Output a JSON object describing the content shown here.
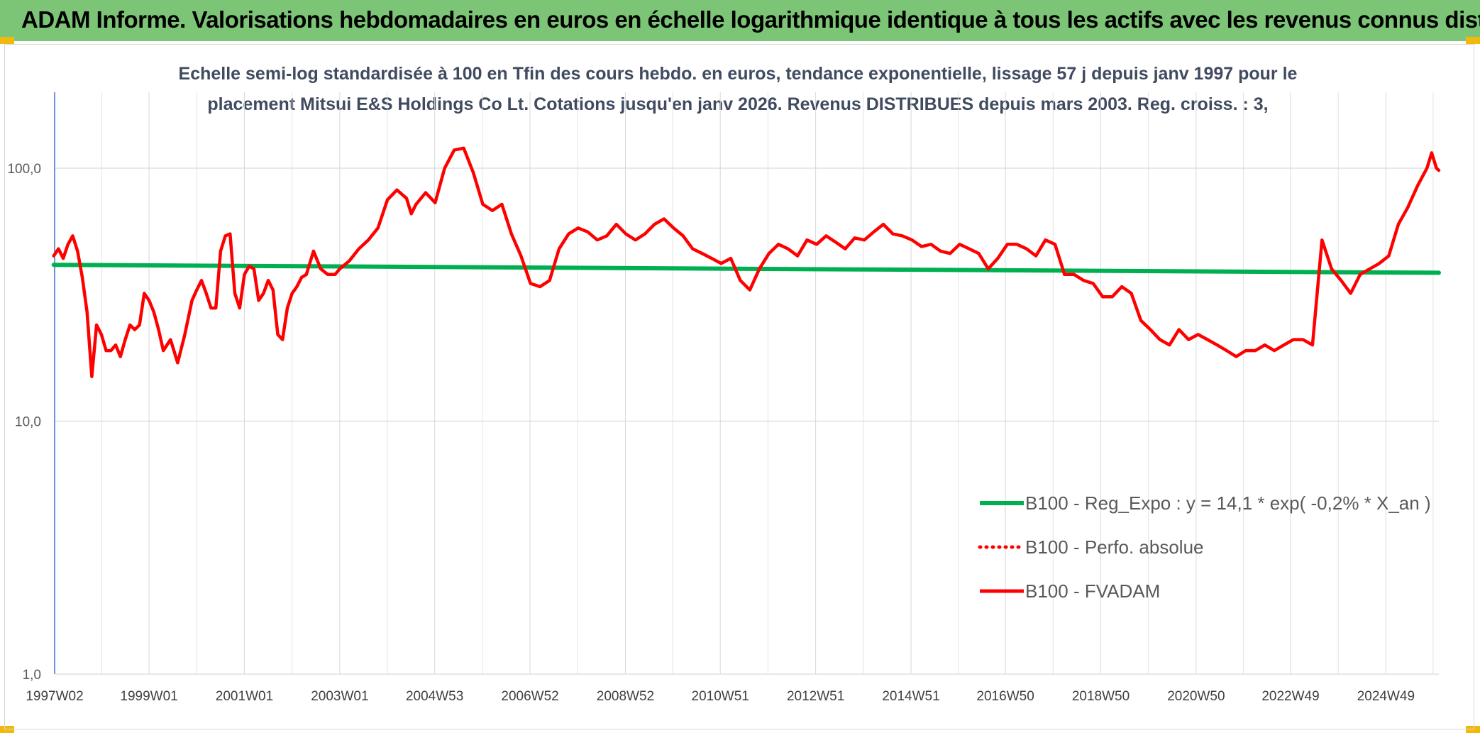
{
  "header": {
    "title": "ADAM Informe. Valorisations hebdomadaires en euros en échelle logarithmique identique à tous les actifs avec les revenus connus distribués"
  },
  "colors": {
    "banner": "#7cc576",
    "corner": "#f2b90d",
    "regression": "#00b050",
    "series": "#ff0000"
  },
  "chart_data": {
    "type": "line",
    "title_line1": "Echelle semi-log standardisée à 100 en Tfin des cours hebdo. en euros, tendance exponentielle, lissage 57 j depuis janv 1997 pour le",
    "title_line2": "placement Mitsui E&S Holdings Co Lt. Cotations jusqu'en janv 2026. Revenus DISTRIBUES depuis mars 2003. Reg. croiss. : 3,",
    "y_scale": "log",
    "ylim": [
      1,
      200
    ],
    "y_ticks": [
      {
        "value": 100,
        "label": "100,0"
      },
      {
        "value": 10,
        "label": "10,0"
      },
      {
        "value": 1,
        "label": "1,0"
      }
    ],
    "x_range": [
      1997.02,
      2026.05
    ],
    "x_ticks": [
      {
        "value": 1997.02,
        "label": "1997W02"
      },
      {
        "value": 1999.0,
        "label": "1999W01"
      },
      {
        "value": 2001.0,
        "label": "2001W01"
      },
      {
        "value": 2003.0,
        "label": "2003W01"
      },
      {
        "value": 2004.99,
        "label": "2004W53"
      },
      {
        "value": 2006.99,
        "label": "2006W52"
      },
      {
        "value": 2008.99,
        "label": "2008W52"
      },
      {
        "value": 2010.98,
        "label": "2010W51"
      },
      {
        "value": 2012.98,
        "label": "2012W51"
      },
      {
        "value": 2014.98,
        "label": "2014W51"
      },
      {
        "value": 2016.96,
        "label": "2016W50"
      },
      {
        "value": 2018.96,
        "label": "2018W50"
      },
      {
        "value": 2020.96,
        "label": "2020W50"
      },
      {
        "value": 2022.94,
        "label": "2022W49"
      },
      {
        "value": 2024.94,
        "label": "2024W49"
      }
    ],
    "grid": true,
    "legend_position": "bottom-right",
    "series": [
      {
        "name": "B100 - Reg_Expo : y = 14,1 * exp( -0,2% *  X_an )",
        "color": "#00b050",
        "style": "solid",
        "x": [
          1997.0,
          2026.05
        ],
        "y": [
          41.5,
          38.6
        ]
      },
      {
        "name": "B100 - Perfo. absolue",
        "color": "#ff0000",
        "style": "dotted",
        "x": [],
        "y": []
      },
      {
        "name": "B100 - FVADAM",
        "color": "#ff0000",
        "style": "solid",
        "x": [
          1997.0,
          1997.1,
          1997.2,
          1997.3,
          1997.4,
          1997.5,
          1997.6,
          1997.7,
          1997.8,
          1997.9,
          1998.0,
          1998.1,
          1998.2,
          1998.3,
          1998.4,
          1998.5,
          1998.6,
          1998.7,
          1998.8,
          1998.9,
          1999.0,
          1999.1,
          1999.2,
          1999.3,
          1999.45,
          1999.6,
          1999.75,
          1999.9,
          2000.0,
          2000.1,
          2000.2,
          2000.3,
          2000.4,
          2000.5,
          2000.6,
          2000.7,
          2000.8,
          2000.9,
          2001.0,
          2001.1,
          2001.2,
          2001.3,
          2001.4,
          2001.5,
          2001.6,
          2001.7,
          2001.8,
          2001.9,
          2002.0,
          2002.1,
          2002.2,
          2002.3,
          2002.45,
          2002.6,
          2002.75,
          2002.9,
          2003.0,
          2003.2,
          2003.4,
          2003.6,
          2003.8,
          2004.0,
          2004.2,
          2004.4,
          2004.5,
          2004.6,
          2004.8,
          2005.0,
          2005.2,
          2005.4,
          2005.6,
          2005.8,
          2006.0,
          2006.2,
          2006.4,
          2006.6,
          2006.8,
          2007.0,
          2007.2,
          2007.4,
          2007.6,
          2007.8,
          2008.0,
          2008.2,
          2008.4,
          2008.6,
          2008.8,
          2009.0,
          2009.2,
          2009.4,
          2009.6,
          2009.8,
          2010.0,
          2010.2,
          2010.4,
          2010.6,
          2010.8,
          2011.0,
          2011.2,
          2011.4,
          2011.6,
          2011.8,
          2012.0,
          2012.2,
          2012.4,
          2012.6,
          2012.8,
          2013.0,
          2013.2,
          2013.4,
          2013.6,
          2013.8,
          2014.0,
          2014.2,
          2014.4,
          2014.6,
          2014.8,
          2015.0,
          2015.2,
          2015.4,
          2015.6,
          2015.8,
          2016.0,
          2016.2,
          2016.4,
          2016.6,
          2016.8,
          2017.0,
          2017.2,
          2017.4,
          2017.6,
          2017.8,
          2018.0,
          2018.2,
          2018.4,
          2018.6,
          2018.8,
          2019.0,
          2019.2,
          2019.4,
          2019.6,
          2019.8,
          2020.0,
          2020.2,
          2020.4,
          2020.6,
          2020.8,
          2021.0,
          2021.2,
          2021.4,
          2021.6,
          2021.8,
          2022.0,
          2022.2,
          2022.4,
          2022.6,
          2022.8,
          2023.0,
          2023.2,
          2023.4,
          2023.6,
          2023.8,
          2024.0,
          2024.2,
          2024.4,
          2024.6,
          2024.8,
          2025.0,
          2025.2,
          2025.4,
          2025.6,
          2025.8,
          2025.9,
          2026.0,
          2026.05
        ],
        "y": [
          45,
          48,
          44,
          50,
          54,
          47,
          37,
          27,
          15,
          24,
          22,
          19,
          19,
          20,
          18,
          21,
          24,
          23,
          24,
          32,
          30,
          27,
          23,
          19,
          21,
          17,
          22,
          30,
          33,
          36,
          32,
          28,
          28,
          47,
          54,
          55,
          32,
          28,
          38,
          41,
          40,
          30,
          32,
          36,
          33,
          22,
          21,
          28,
          32,
          34,
          37,
          38,
          47,
          40,
          38,
          38,
          40,
          43,
          48,
          52,
          58,
          75,
          82,
          76,
          66,
          72,
          80,
          73,
          100,
          118,
          120,
          96,
          72,
          68,
          72,
          55,
          45,
          35,
          34,
          36,
          48,
          55,
          58,
          56,
          52,
          54,
          60,
          55,
          52,
          55,
          60,
          63,
          58,
          54,
          48,
          46,
          44,
          42,
          44,
          36,
          33,
          40,
          46,
          50,
          48,
          45,
          52,
          50,
          54,
          51,
          48,
          53,
          52,
          56,
          60,
          55,
          54,
          52,
          49,
          50,
          47,
          46,
          50,
          48,
          46,
          40,
          44,
          50,
          50,
          48,
          45,
          52,
          50,
          38,
          38,
          36,
          35,
          31,
          31,
          34,
          32,
          25,
          23,
          21,
          20,
          23,
          21,
          22,
          21,
          20,
          19,
          18,
          19,
          19,
          20,
          19,
          20,
          21,
          21,
          20,
          52,
          40,
          36,
          32,
          38,
          40,
          42,
          45,
          60,
          70,
          85,
          100,
          115,
          100,
          98
        ]
      }
    ]
  }
}
